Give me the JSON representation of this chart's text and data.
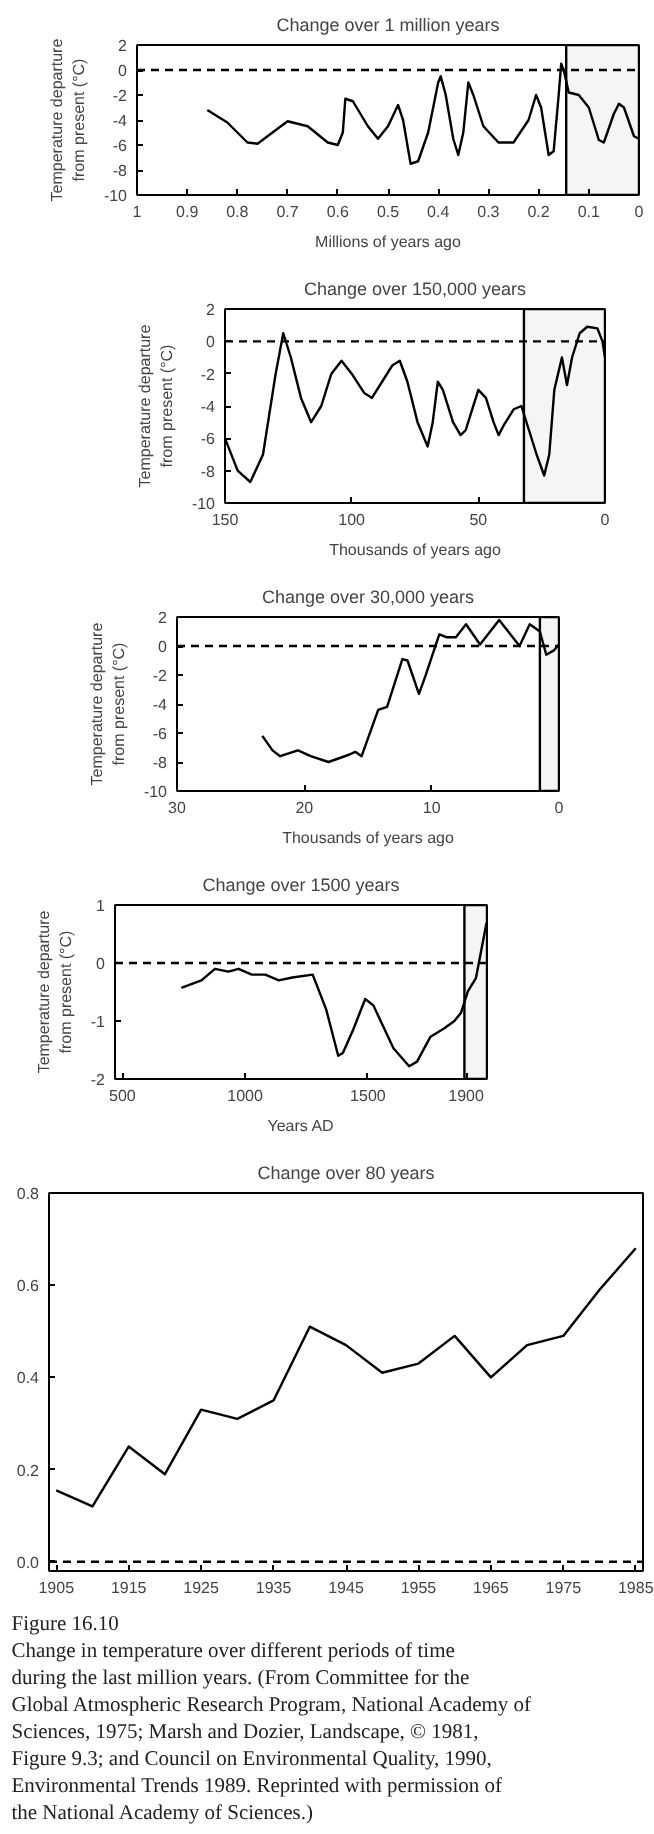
{
  "chart_data": [
    {
      "type": "line",
      "title": "Change over 1 million years",
      "xlabel": "Millions of years ago",
      "ylabel": "Temperature departure\nfrom present (°C)",
      "x": [
        0.86,
        0.82,
        0.78,
        0.76,
        0.73,
        0.7,
        0.66,
        0.62,
        0.6,
        0.59,
        0.585,
        0.57,
        0.54,
        0.52,
        0.5,
        0.48,
        0.47,
        0.455,
        0.44,
        0.42,
        0.4,
        0.395,
        0.385,
        0.37,
        0.36,
        0.35,
        0.34,
        0.33,
        0.31,
        0.28,
        0.25,
        0.22,
        0.205,
        0.195,
        0.18,
        0.17,
        0.16,
        0.155,
        0.15,
        0.14,
        0.12,
        0.1,
        0.08,
        0.07,
        0.05,
        0.04,
        0.03,
        0.01,
        0.0
      ],
      "series": [
        {
          "color": "#000000",
          "values": [
            -3.2,
            -4.2,
            -5.8,
            -5.9,
            -5.0,
            -4.1,
            -4.5,
            -5.8,
            -6.0,
            -5.0,
            -2.3,
            -2.5,
            -4.5,
            -5.5,
            -4.5,
            -2.8,
            -4.0,
            -7.5,
            -7.3,
            -5.0,
            -1.0,
            -0.5,
            -2.0,
            -5.5,
            -6.8,
            -5.0,
            -1.0,
            -2.0,
            -4.5,
            -5.8,
            -5.8,
            -4.0,
            -2.0,
            -3.0,
            -6.8,
            -6.5,
            -2.0,
            0.5,
            0.0,
            -1.8,
            -2.0,
            -3.0,
            -5.6,
            -5.8,
            -3.5,
            -2.7,
            -3.0,
            -5.3,
            -5.5
          ]
        }
      ],
      "xlim": [
        1,
        0
      ],
      "xticks": [
        1,
        0.9,
        0.8,
        0.7,
        0.6,
        0.5,
        0.4,
        0.3,
        0.2,
        0.1,
        0
      ],
      "ylim": [
        -10,
        2
      ],
      "yticks": [
        -10,
        -8,
        -6,
        -4,
        -2,
        0,
        2
      ],
      "ref_lines": [
        {
          "axis": "y",
          "value": 0,
          "line_style": "dashed"
        }
      ],
      "bands": [
        {
          "axis": "x",
          "from": 0.145,
          "to": 0
        }
      ]
    },
    {
      "type": "line",
      "title": "Change over 150,000 years",
      "xlabel": "Thousands of years ago",
      "ylabel": "Temperature departure\nfrom present (°C)",
      "x": [
        150,
        145,
        140,
        135,
        130,
        127,
        124,
        120,
        116,
        112,
        108,
        104,
        100,
        95,
        92,
        88,
        84,
        81,
        78,
        74,
        70,
        68,
        66,
        64,
        60,
        57,
        55,
        53,
        50,
        47,
        44,
        42,
        40,
        36,
        33,
        30,
        27,
        24,
        22,
        20,
        17,
        15,
        13,
        10,
        7,
        3,
        1,
        0
      ],
      "series": [
        {
          "color": "#000000",
          "values": [
            -6.0,
            -8.0,
            -8.7,
            -7.0,
            -2.0,
            0.5,
            -1.0,
            -3.5,
            -5.0,
            -4.0,
            -2.0,
            -1.2,
            -2.0,
            -3.2,
            -3.5,
            -2.5,
            -1.5,
            -1.2,
            -2.5,
            -5.0,
            -6.5,
            -5.0,
            -2.5,
            -3.0,
            -5.0,
            -5.8,
            -5.5,
            -4.5,
            -3.0,
            -3.5,
            -5.0,
            -5.8,
            -5.2,
            -4.2,
            -4.0,
            -5.5,
            -7.0,
            -8.3,
            -7.0,
            -3.0,
            -1.0,
            -2.7,
            -1.0,
            0.5,
            0.9,
            0.8,
            0.0,
            -1.0
          ]
        }
      ],
      "xlim": [
        150,
        0
      ],
      "xticks": [
        150,
        100,
        50,
        0
      ],
      "ylim": [
        -10,
        2
      ],
      "yticks": [
        -10,
        -8,
        -6,
        -4,
        -2,
        0,
        2
      ],
      "ref_lines": [
        {
          "axis": "y",
          "value": 0,
          "line_style": "dashed"
        }
      ],
      "bands": [
        {
          "axis": "x",
          "from": 32,
          "to": 0
        }
      ]
    },
    {
      "type": "line",
      "title": "Change over 30,000 years",
      "xlabel": "Thousands of years ago",
      "ylabel": "Temperature departure\nfrom present (°C)",
      "x": [
        23.3,
        22.5,
        21.9,
        20.5,
        19.5,
        18.1,
        16.5,
        16,
        15.5,
        14.2,
        13.5,
        12.3,
        11.9,
        11,
        10.5,
        9.4,
        8.8,
        8.1,
        7.3,
        6.2,
        4.7,
        3.1,
        2.3,
        1.5,
        1,
        0.4,
        0
      ],
      "series": [
        {
          "color": "#000000",
          "values": [
            -6.2,
            -7.2,
            -7.6,
            -7.2,
            -7.6,
            -8.0,
            -7.5,
            -7.3,
            -7.6,
            -4.4,
            -4.2,
            -0.9,
            -1.0,
            -3.3,
            -2.1,
            0.8,
            0.6,
            0.6,
            1.5,
            0.1,
            1.8,
            0.0,
            1.5,
            1.0,
            -0.6,
            -0.3,
            0.1
          ]
        }
      ],
      "xlim": [
        30,
        0
      ],
      "xticks": [
        30,
        20,
        10,
        0
      ],
      "ylim": [
        -10,
        2
      ],
      "yticks": [
        -10,
        -8,
        -6,
        -4,
        -2,
        0,
        2
      ],
      "ref_lines": [
        {
          "axis": "y",
          "value": 0,
          "line_style": "dashed"
        }
      ],
      "bands": [
        {
          "axis": "x",
          "from": 1.5,
          "to": 0
        }
      ]
    },
    {
      "type": "line",
      "title": "Change over 1500 years",
      "xlabel": "Years AD",
      "ylabel": "Temperature departure\nfrom present (°C)",
      "x": [
        740,
        822,
        877,
        932,
        973,
        1027,
        1082,
        1137,
        1192,
        1275,
        1330,
        1379,
        1398,
        1440,
        1489,
        1522,
        1604,
        1668,
        1700,
        1755,
        1810,
        1852,
        1879,
        1907,
        1940,
        1983
      ],
      "series": [
        {
          "color": "#000000",
          "values": [
            -0.43,
            -0.3,
            -0.1,
            -0.15,
            -0.1,
            -0.2,
            -0.2,
            -0.3,
            -0.25,
            -0.2,
            -0.8,
            -1.6,
            -1.55,
            -1.15,
            -0.62,
            -0.73,
            -1.47,
            -1.78,
            -1.7,
            -1.27,
            -1.13,
            -1.0,
            -0.86,
            -0.49,
            -0.26,
            0.69
          ]
        }
      ],
      "xlim": [
        470,
        1985
      ],
      "xticks": [
        500,
        1000,
        1500,
        1900
      ],
      "ylim": [
        -2,
        1
      ],
      "yticks": [
        -2,
        -1,
        0,
        1
      ],
      "ref_lines": [
        {
          "axis": "y",
          "value": 0,
          "line_style": "dashed"
        }
      ],
      "bands": [
        {
          "axis": "x",
          "from": 1893,
          "to": 1985
        }
      ]
    },
    {
      "type": "line",
      "title": "Change over 80 years",
      "x": [
        1905,
        1910,
        1915,
        1920,
        1925,
        1930,
        1935,
        1940,
        1945,
        1950,
        1955,
        1960,
        1965,
        1970,
        1975,
        1980,
        1985
      ],
      "series": [
        {
          "color": "#000000",
          "values": [
            0.155,
            0.12,
            0.25,
            0.19,
            0.33,
            0.31,
            0.35,
            0.51,
            0.47,
            0.41,
            0.43,
            0.49,
            0.4,
            0.47,
            0.49,
            0.59,
            0.68
          ]
        }
      ],
      "xlim": [
        1904,
        1986
      ],
      "xticks": [
        1905,
        1915,
        1925,
        1935,
        1945,
        1955,
        1965,
        1975,
        1985
      ],
      "ylim": [
        -0.02,
        0.8
      ],
      "yticks": [
        {
          "value": 0,
          "label": "0.0"
        },
        0.2,
        0.4,
        0.6,
        0.8
      ],
      "ref_lines": [
        {
          "axis": "y",
          "value": 0,
          "line_style": "dashed"
        }
      ],
      "annotations": [
        "Figure 16.10",
        "Change in temperature over different periods of time during the last million years. (From Committee for the Global Atmospheric Research Program, National Academy of Sciences, 1975; Marsh and Dozier, Landscape, © 1981, Figure 9.3; and Council on Environmental Quality, 1990, Environmental Trends 1989. Reprinted with permission of the National Academy of Sciences.)"
      ]
    }
  ]
}
